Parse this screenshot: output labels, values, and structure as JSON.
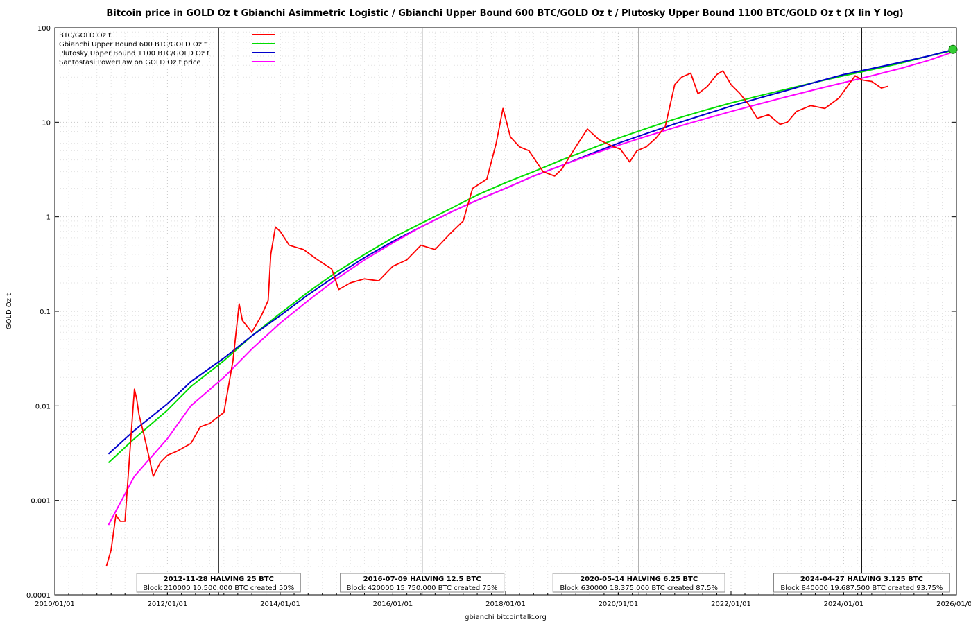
{
  "chart_data": {
    "type": "line",
    "title": "Bitcoin price in GOLD Oz t Gbianchi Asimmetric Logistic / Gbianchi Upper Bound 600  BTC/GOLD Oz t / Plutosky Upper Bound 1100  BTC/GOLD Oz t  (X lin Y log)",
    "ylabel": "GOLD Oz t",
    "xlabel": "gbianchi bitcointalk.org",
    "y_scale": "log",
    "grid": true,
    "legend_position": "top-left",
    "xlim": [
      "2010/01/01",
      "2026/01/01"
    ],
    "ylim": [
      0.0001,
      100
    ],
    "x_ticks": [
      "2010/01/01",
      "2012/01/01",
      "2014/01/01",
      "2016/01/01",
      "2018/01/01",
      "2020/01/01",
      "2022/01/01",
      "2024/01/01",
      "2026/01/01"
    ],
    "y_ticks": [
      {
        "value": 0.0001,
        "label": "0.0001"
      },
      {
        "value": 0.001,
        "label": "0.001"
      },
      {
        "value": 0.01,
        "label": "0.01"
      },
      {
        "value": 0.1,
        "label": "0.1"
      },
      {
        "value": 1,
        "label": "1"
      },
      {
        "value": 10,
        "label": "10"
      },
      {
        "value": 100,
        "label": "100"
      }
    ],
    "series": [
      {
        "name": "BTC/GOLD Oz t",
        "color": "#ff0000",
        "x": [
          "2010/12/01",
          "2011/01/01",
          "2011/02/01",
          "2011/03/01",
          "2011/04/01",
          "2011/05/01",
          "2011/06/01",
          "2011/06/15",
          "2011/07/01",
          "2011/08/01",
          "2011/09/01",
          "2011/10/01",
          "2011/11/15",
          "2012/01/01",
          "2012/03/01",
          "2012/06/01",
          "2012/08/01",
          "2012/10/01",
          "2012/12/01",
          "2013/01/01",
          "2013/03/01",
          "2013/04/10",
          "2013/05/01",
          "2013/07/01",
          "2013/09/01",
          "2013/10/15",
          "2013/11/01",
          "2013/12/01",
          "2014/01/01",
          "2014/03/01",
          "2014/06/01",
          "2014/09/01",
          "2014/12/01",
          "2015/01/15",
          "2015/04/01",
          "2015/07/01",
          "2015/10/01",
          "2016/01/01",
          "2016/04/01",
          "2016/07/01",
          "2016/10/01",
          "2017/01/01",
          "2017/04/01",
          "2017/06/01",
          "2017/09/01",
          "2017/11/01",
          "2017/12/15",
          "2018/02/01",
          "2018/04/01",
          "2018/06/01",
          "2018/09/01",
          "2018/11/15",
          "2019/01/01",
          "2019/04/01",
          "2019/06/15",
          "2019/09/01",
          "2019/12/01",
          "2020/01/15",
          "2020/03/15",
          "2020/05/01",
          "2020/07/01",
          "2020/09/01",
          "2020/11/01",
          "2021/01/01",
          "2021/02/15",
          "2021/04/15",
          "2021/06/01",
          "2021/08/01",
          "2021/10/01",
          "2021/11/10",
          "2022/01/01",
          "2022/03/01",
          "2022/05/01",
          "2022/06/20",
          "2022/09/01",
          "2022/11/15",
          "2023/01/01",
          "2023/03/01",
          "2023/06/01",
          "2023/09/01",
          "2023/12/01",
          "2024/03/15",
          "2024/05/01",
          "2024/07/01",
          "2024/09/01",
          "2024/10/15"
        ],
        "values": [
          0.0002,
          0.0003,
          0.0007,
          0.0006,
          0.0006,
          0.003,
          0.015,
          0.012,
          0.008,
          0.005,
          0.003,
          0.0018,
          0.0025,
          0.003,
          0.0033,
          0.004,
          0.006,
          0.0065,
          0.0078,
          0.0085,
          0.03,
          0.12,
          0.08,
          0.06,
          0.09,
          0.13,
          0.4,
          0.78,
          0.7,
          0.5,
          0.45,
          0.35,
          0.28,
          0.17,
          0.2,
          0.22,
          0.21,
          0.3,
          0.35,
          0.5,
          0.45,
          0.65,
          0.9,
          2.0,
          2.5,
          6.0,
          14.0,
          7.0,
          5.5,
          5.0,
          3.0,
          2.7,
          3.2,
          5.5,
          8.5,
          6.5,
          5.5,
          5.2,
          3.8,
          5.0,
          5.5,
          6.8,
          9.0,
          25.0,
          30.0,
          33.0,
          20.0,
          24.0,
          32.0,
          35.0,
          25.0,
          20.0,
          15.0,
          11.0,
          12.0,
          9.5,
          10.0,
          13.0,
          15.0,
          14.0,
          18.0,
          31.0,
          28.0,
          27.0,
          23.0,
          24.0
        ]
      },
      {
        "name": "Gbianchi Upper Bound 600  BTC/GOLD Oz t",
        "color": "#00dd00",
        "x": [
          "2010/12/15",
          "2011/06/01",
          "2012/01/01",
          "2012/06/01",
          "2013/01/01",
          "2013/07/01",
          "2014/01/01",
          "2014/07/01",
          "2015/01/01",
          "2015/07/01",
          "2016/01/01",
          "2016/07/01",
          "2017/01/01",
          "2017/07/01",
          "2018/01/01",
          "2018/07/01",
          "2019/01/01",
          "2019/07/01",
          "2020/01/01",
          "2020/07/01",
          "2021/01/01",
          "2021/07/01",
          "2022/01/01",
          "2022/07/01",
          "2023/01/01",
          "2023/07/01",
          "2024/01/01",
          "2024/07/01",
          "2025/01/01",
          "2025/07/01",
          "2025/12/20"
        ],
        "values": [
          0.0025,
          0.0045,
          0.009,
          0.016,
          0.03,
          0.055,
          0.095,
          0.16,
          0.26,
          0.4,
          0.6,
          0.85,
          1.2,
          1.7,
          2.3,
          3.0,
          4.0,
          5.2,
          6.8,
          8.6,
          10.8,
          13.2,
          16.0,
          19.0,
          22.5,
          26.5,
          31.0,
          36.0,
          42.0,
          50.0,
          58.0
        ]
      },
      {
        "name": "Plutosky Upper Bound 1100  BTC/GOLD Oz t",
        "color": "#0000cc",
        "x": [
          "2010/12/15",
          "2011/06/01",
          "2012/01/01",
          "2012/06/01",
          "2013/01/01",
          "2013/07/01",
          "2014/01/01",
          "2014/07/01",
          "2015/01/01",
          "2015/07/01",
          "2016/01/01",
          "2016/07/01",
          "2017/01/01",
          "2017/07/01",
          "2018/01/01",
          "2018/07/01",
          "2019/01/01",
          "2019/07/01",
          "2020/01/01",
          "2020/07/01",
          "2021/01/01",
          "2021/07/01",
          "2022/01/01",
          "2022/07/01",
          "2023/01/01",
          "2023/07/01",
          "2024/01/01",
          "2024/07/01",
          "2025/01/01",
          "2025/07/01",
          "2025/12/20"
        ],
        "values": [
          0.0031,
          0.0055,
          0.0105,
          0.018,
          0.032,
          0.055,
          0.09,
          0.15,
          0.24,
          0.37,
          0.55,
          0.78,
          1.1,
          1.5,
          2.0,
          2.7,
          3.5,
          4.6,
          6.0,
          7.6,
          9.6,
          11.9,
          14.8,
          18.0,
          21.8,
          26.5,
          32.0,
          37.0,
          43.0,
          50.0,
          59.0
        ]
      },
      {
        "name": "Santostasi PowerLaw on GOLD Oz t price",
        "color": "#ff00ff",
        "x": [
          "2010/12/15",
          "2011/06/01",
          "2012/01/01",
          "2012/06/01",
          "2013/01/01",
          "2013/07/01",
          "2014/01/01",
          "2014/07/01",
          "2015/01/01",
          "2015/07/01",
          "2016/01/01",
          "2016/07/01",
          "2017/01/01",
          "2017/07/01",
          "2018/01/01",
          "2018/07/01",
          "2019/01/01",
          "2019/07/01",
          "2020/01/01",
          "2020/07/01",
          "2021/01/01",
          "2021/07/01",
          "2022/01/01",
          "2022/07/01",
          "2023/01/01",
          "2023/07/01",
          "2024/01/01",
          "2024/07/01",
          "2025/01/01",
          "2025/07/01",
          "2025/12/20"
        ],
        "values": [
          0.00055,
          0.0018,
          0.0045,
          0.01,
          0.02,
          0.04,
          0.075,
          0.13,
          0.22,
          0.35,
          0.53,
          0.78,
          1.1,
          1.5,
          2.0,
          2.7,
          3.5,
          4.5,
          5.7,
          7.1,
          8.8,
          10.7,
          13.0,
          15.6,
          18.7,
          22.2,
          26.3,
          31.0,
          37.0,
          45.0,
          56.0
        ]
      }
    ],
    "marker": {
      "x": "2025/12/28",
      "y": 59.0,
      "color": "#33cc33"
    },
    "halvings": [
      {
        "date": "2012/11/28",
        "title": "2012-11-28 HALVING 25 BTC",
        "subtitle": "Block 210000 10.500.000 BTC created 50%"
      },
      {
        "date": "2016/07/09",
        "title": "2016-07-09 HALVING 12.5 BTC",
        "subtitle": "Block 420000 15.750.000 BTC created 75%"
      },
      {
        "date": "2020/05/14",
        "title": "2020-05-14 HALVING 6.25 BTC",
        "subtitle": "Block 630000 18.375.000 BTC created 87.5%"
      },
      {
        "date": "2024/04/27",
        "title": "2024-04-27 HALVING 3.125 BTC",
        "subtitle": "Block 840000 19.687.500 BTC created 93.75%"
      }
    ]
  }
}
